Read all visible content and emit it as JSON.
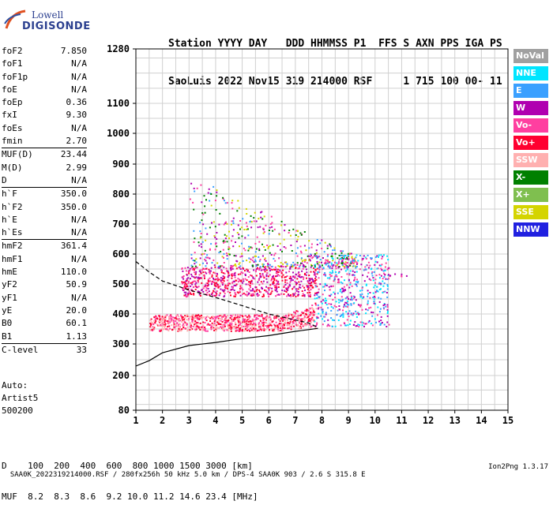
{
  "logo": {
    "line1": "Lowell",
    "line2": "DIGISONDE"
  },
  "header": {
    "line1": "Station YYYY DAY   DDD HHMMSS P1  FFS S AXN PPS IGA PS",
    "line2": "SaoLuis 2022 Nov15 319 214000 RSF     1 715 100 00- 11"
  },
  "params": {
    "group1": [
      {
        "label": "foF2",
        "value": "7.850"
      },
      {
        "label": "foF1",
        "value": "N/A"
      },
      {
        "label": "foF1p",
        "value": "N/A"
      },
      {
        "label": "foE",
        "value": "N/A"
      },
      {
        "label": "foEp",
        "value": "0.36"
      },
      {
        "label": "fxI",
        "value": "9.30"
      },
      {
        "label": "foEs",
        "value": "N/A"
      },
      {
        "label": "fmin",
        "value": "2.70"
      }
    ],
    "group2": [
      {
        "label": "MUF(D)",
        "value": "23.44"
      },
      {
        "label": "M(D)",
        "value": "2.99"
      },
      {
        "label": "D",
        "value": "N/A"
      }
    ],
    "group3": [
      {
        "label": "h`F",
        "value": "350.0"
      },
      {
        "label": "h`F2",
        "value": "350.0"
      },
      {
        "label": "h`E",
        "value": "N/A"
      },
      {
        "label": "h`Es",
        "value": "N/A"
      }
    ],
    "group4": [
      {
        "label": "hmF2",
        "value": "361.4"
      },
      {
        "label": "hmF1",
        "value": "N/A"
      },
      {
        "label": "hmE",
        "value": "110.0"
      },
      {
        "label": "yF2",
        "value": "50.9"
      },
      {
        "label": "yF1",
        "value": "N/A"
      },
      {
        "label": "yE",
        "value": "20.0"
      },
      {
        "label": "B0",
        "value": "60.1"
      },
      {
        "label": "B1",
        "value": "1.13"
      }
    ],
    "group5": [
      {
        "label": "C-level",
        "value": "33"
      }
    ]
  },
  "auto": {
    "line1": "Auto:",
    "line2": "Artist5",
    "line3": "500200"
  },
  "legend": [
    {
      "label": "NoVal",
      "color": "#a0a0a0"
    },
    {
      "label": "NNE",
      "color": "#00e5ff"
    },
    {
      "label": "E",
      "color": "#3aa0ff"
    },
    {
      "label": "W",
      "color": "#b000b0"
    },
    {
      "label": "Vo-",
      "color": "#ff3fa0"
    },
    {
      "label": "Vo+",
      "color": "#ff0030"
    },
    {
      "label": "SSW",
      "color": "#ffb0b0"
    },
    {
      "label": "X-",
      "color": "#008000"
    },
    {
      "label": "X+",
      "color": "#7fbf4f"
    },
    {
      "label": "SSE",
      "color": "#d4d400"
    },
    {
      "label": "NNW",
      "color": "#2020e0"
    }
  ],
  "muf_table": {
    "line1": "D    100  200  400  600  800 1000 1500 3000 [km]",
    "line2": "MUF  8.2  8.3  8.6  9.2 10.0 11.2 14.6 23.4 [MHz]"
  },
  "footer": {
    "left": "SAA0K_2022319214000.RSF / 280fx256h 50 kHz 5.0 km / DPS-4 SAA0K 903 / 2.6 S 315.8 E",
    "right": "Ion2Png 1.3.17"
  },
  "chart_data": {
    "type": "scatter",
    "title": "",
    "xlabel": "",
    "ylabel": "",
    "xlim": [
      1,
      15
    ],
    "ylim": [
      80,
      1280
    ],
    "y_scale": "reciprocal-like (ionogram virtual height)",
    "x_ticks": [
      "1",
      "2",
      "3",
      "4",
      "5",
      "6",
      "7",
      "8",
      "9",
      "10",
      "11",
      "12",
      "13",
      "14",
      "15"
    ],
    "y_ticks": [
      "80",
      "200",
      "300",
      "400",
      "500",
      "600",
      "700",
      "800",
      "900",
      "1000",
      "1100",
      "1280"
    ],
    "grid": true,
    "legend_position": "right",
    "clusters": [
      {
        "mode": "o-trace F2 (lower)",
        "colors": [
          "Vo+",
          "Vo-",
          "SSW"
        ],
        "f_range": [
          1.5,
          7.8
        ],
        "h_range": [
          345,
          420
        ]
      },
      {
        "mode": "multihop 2F",
        "colors": [
          "W",
          "Vo-",
          "Vo+"
        ],
        "f_range": [
          2.7,
          7.8
        ],
        "h_range": [
          460,
          560
        ]
      },
      {
        "mode": "spread F high",
        "colors": [
          "W",
          "Vo-",
          "E",
          "X-",
          "SSE"
        ],
        "f_range": [
          3.0,
          9.3
        ],
        "h_range": [
          560,
          870
        ]
      },
      {
        "mode": "x-trace",
        "colors": [
          "E",
          "W",
          "NNE",
          "Vo-"
        ],
        "f_range": [
          7.7,
          10.5
        ],
        "h_range": [
          360,
          600
        ]
      },
      {
        "mode": "isolated points",
        "colors": [
          "W",
          "Vo-"
        ],
        "f_range": [
          10.0,
          11.2
        ],
        "h_range": [
          520,
          540
        ]
      }
    ],
    "true_height_profile": {
      "f": [
        1.0,
        1.5,
        2.0,
        3.0,
        4.0,
        5.0,
        6.0,
        7.0,
        7.5,
        7.85
      ],
      "h": [
        230,
        247,
        272,
        295,
        305,
        318,
        328,
        342,
        348,
        352
      ]
    },
    "muf_curve": {
      "f": [
        1.0,
        1.5,
        2.0,
        3.0,
        4.0,
        5.0,
        6.0,
        7.0,
        7.5,
        7.85
      ],
      "h": [
        575,
        540,
        510,
        480,
        455,
        428,
        400,
        380,
        370,
        355
      ]
    }
  }
}
